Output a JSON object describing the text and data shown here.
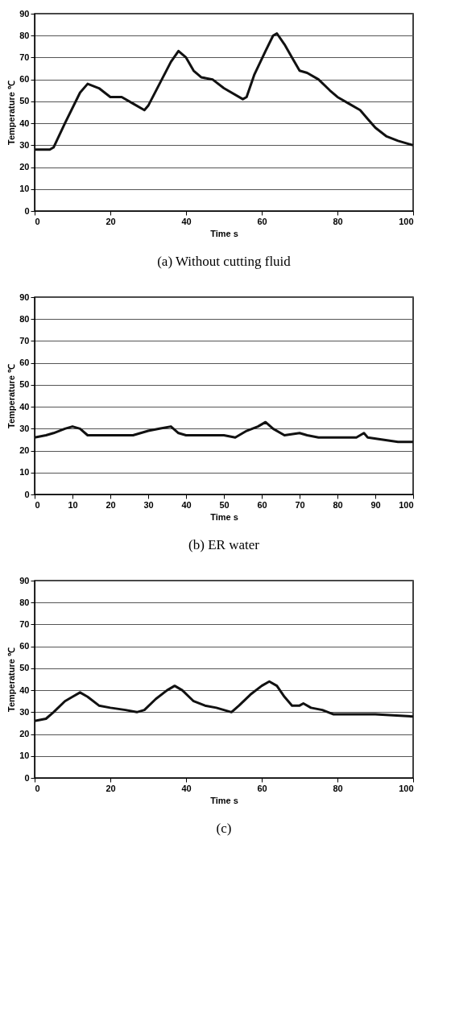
{
  "chart_data": [
    {
      "type": "line",
      "title": "(a)    Without cutting fluid",
      "xlabel": "Time  s",
      "ylabel": "Temperature  ℃",
      "xlim": [
        0,
        100
      ],
      "xticks": [
        0,
        20,
        40,
        60,
        80,
        100
      ],
      "ylim": [
        0,
        90
      ],
      "yticks": [
        0,
        10,
        20,
        30,
        40,
        50,
        60,
        70,
        80,
        90
      ],
      "grid": "y",
      "x": [
        0,
        4,
        5,
        8,
        12,
        14,
        17,
        20,
        23,
        26,
        29,
        30,
        33,
        36,
        38,
        40,
        42,
        44,
        47,
        50,
        55,
        56,
        58,
        61,
        63,
        64,
        66,
        68,
        70,
        72,
        75,
        78,
        80,
        83,
        86,
        88,
        90,
        93,
        96,
        100
      ],
      "series": [
        {
          "color": "#111111",
          "values": [
            28,
            28,
            29,
            40,
            54,
            58,
            56,
            52,
            52,
            49,
            46,
            48,
            58,
            68,
            73,
            70,
            64,
            61,
            60,
            56,
            51,
            52,
            62,
            73,
            80,
            81,
            76,
            70,
            64,
            63,
            60,
            55,
            52,
            49,
            46,
            42,
            38,
            34,
            32,
            30
          ]
        }
      ]
    },
    {
      "type": "line",
      "title": "(b)    ER water",
      "xlabel": "Time  s",
      "ylabel": "Temperature  ℃",
      "xlim": [
        0,
        100
      ],
      "xticks": [
        0,
        10,
        20,
        30,
        40,
        50,
        60,
        70,
        80,
        90,
        100
      ],
      "ylim": [
        0,
        90
      ],
      "yticks": [
        0,
        10,
        20,
        30,
        40,
        50,
        60,
        70,
        80,
        90
      ],
      "grid": "y",
      "x": [
        0,
        3,
        5,
        8,
        10,
        12,
        14,
        18,
        22,
        26,
        28,
        30,
        33,
        36,
        38,
        40,
        45,
        50,
        53,
        56,
        59,
        61,
        63,
        66,
        70,
        72,
        75,
        80,
        85,
        87,
        88,
        92,
        96,
        100
      ],
      "series": [
        {
          "color": "#111111",
          "values": [
            26,
            27,
            28,
            30,
            31,
            30,
            27,
            27,
            27,
            27,
            28,
            29,
            30,
            31,
            28,
            27,
            27,
            27,
            26,
            29,
            31,
            33,
            30,
            27,
            28,
            27,
            26,
            26,
            26,
            28,
            26,
            25,
            24,
            24
          ]
        }
      ]
    },
    {
      "type": "line",
      "title": "(c)",
      "xlabel": "Time  s",
      "ylabel": "Temperature  ℃",
      "xlim": [
        0,
        100
      ],
      "xticks": [
        0,
        20,
        40,
        60,
        80,
        100
      ],
      "ylim": [
        0,
        90
      ],
      "yticks": [
        0,
        10,
        20,
        30,
        40,
        50,
        60,
        70,
        80,
        90
      ],
      "grid": "y",
      "x": [
        0,
        3,
        5,
        8,
        10,
        12,
        14,
        17,
        20,
        24,
        27,
        29,
        32,
        35,
        37,
        39,
        42,
        45,
        48,
        50,
        52,
        54,
        57,
        60,
        62,
        64,
        66,
        68,
        70,
        71,
        73,
        76,
        79,
        85,
        90,
        100
      ],
      "series": [
        {
          "color": "#111111",
          "values": [
            26,
            27,
            30,
            35,
            37,
            39,
            37,
            33,
            32,
            31,
            30,
            31,
            36,
            40,
            42,
            40,
            35,
            33,
            32,
            31,
            30,
            33,
            38,
            42,
            44,
            42,
            37,
            33,
            33,
            34,
            32,
            31,
            29,
            29,
            29,
            28
          ]
        }
      ]
    }
  ]
}
